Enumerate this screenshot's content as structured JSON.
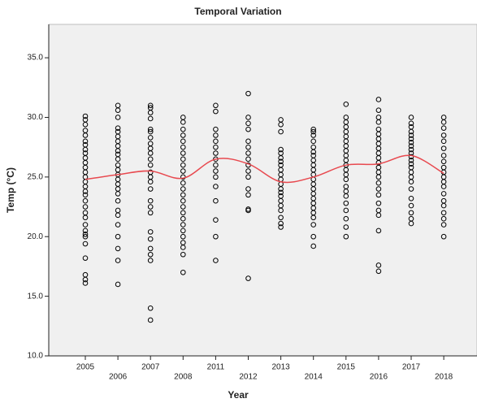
{
  "chart_data": {
    "type": "scatter",
    "title": "Temporal Variation",
    "x_label": "Year",
    "y_label": "Temp (°C)",
    "categories": [
      "2005",
      "2006",
      "2007",
      "2008",
      "2011",
      "2012",
      "2013",
      "2014",
      "2015",
      "2016",
      "2017",
      "2018"
    ],
    "values": [
      [
        30.1,
        29.8,
        29.4,
        28.9,
        28.5,
        28.0,
        27.7,
        27.3,
        27.0,
        26.6,
        26.2,
        25.8,
        25.4,
        25.0,
        24.6,
        24.2,
        23.8,
        23.5,
        23.0,
        22.5,
        22.0,
        21.6,
        21.0,
        20.5,
        20.2,
        20.0,
        19.4,
        18.2,
        16.8,
        16.4,
        16.1
      ],
      [
        31.0,
        30.6,
        30.0,
        29.1,
        28.8,
        28.4,
        28.0,
        27.6,
        27.2,
        26.9,
        26.5,
        26.0,
        25.6,
        25.2,
        24.8,
        24.4,
        24.0,
        23.6,
        23.0,
        22.2,
        21.8,
        21.0,
        20.0,
        19.0,
        18.0,
        16.0
      ],
      [
        31.0,
        30.8,
        30.4,
        29.9,
        29.0,
        28.8,
        28.3,
        27.8,
        27.4,
        27.0,
        26.5,
        26.0,
        25.4,
        25.0,
        24.6,
        24.0,
        23.0,
        22.5,
        22.0,
        20.4,
        19.8,
        19.0,
        18.5,
        18.0,
        14.0,
        13.0
      ],
      [
        30.0,
        29.6,
        29.0,
        28.5,
        28.0,
        27.5,
        27.0,
        26.5,
        26.0,
        25.5,
        25.0,
        24.5,
        24.0,
        23.5,
        23.0,
        22.5,
        22.0,
        21.5,
        21.0,
        20.5,
        20.0,
        19.5,
        19.1,
        18.5,
        17.0
      ],
      [
        31.0,
        30.5,
        29.0,
        28.5,
        28.0,
        27.5,
        27.0,
        26.5,
        26.0,
        25.5,
        25.0,
        24.2,
        23.0,
        21.4,
        20.0,
        18.0
      ],
      [
        32.0,
        30.0,
        29.5,
        29.0,
        28.0,
        27.5,
        27.0,
        26.5,
        26.0,
        25.5,
        25.0,
        24.0,
        23.5,
        22.3,
        22.2,
        16.5
      ],
      [
        29.8,
        29.4,
        28.8,
        27.3,
        27.0,
        26.6,
        26.3,
        26.0,
        25.6,
        25.2,
        24.8,
        24.4,
        24.0,
        23.7,
        23.4,
        23.0,
        22.6,
        22.2,
        21.6,
        21.1,
        20.8
      ],
      [
        29.0,
        28.8,
        28.5,
        28.0,
        27.5,
        27.1,
        26.8,
        26.4,
        26.0,
        25.6,
        25.2,
        24.8,
        24.4,
        24.0,
        23.6,
        23.2,
        22.8,
        22.4,
        22.0,
        21.6,
        21.0,
        20.0,
        19.2
      ],
      [
        31.1,
        30.0,
        29.6,
        29.2,
        28.8,
        28.4,
        28.0,
        27.6,
        27.2,
        26.8,
        26.4,
        26.0,
        25.6,
        25.2,
        24.8,
        24.2,
        23.8,
        23.4,
        22.8,
        22.2,
        21.5,
        20.8,
        20.0
      ],
      [
        31.5,
        30.6,
        30.0,
        29.6,
        29.0,
        28.6,
        28.2,
        27.8,
        27.4,
        27.0,
        26.6,
        26.2,
        25.8,
        25.4,
        25.0,
        24.5,
        24.0,
        23.5,
        22.8,
        22.2,
        21.8,
        20.5,
        17.6,
        17.1
      ],
      [
        30.0,
        29.5,
        29.2,
        28.8,
        28.5,
        28.2,
        27.9,
        27.6,
        27.3,
        27.0,
        26.7,
        26.4,
        26.1,
        25.8,
        25.4,
        25.0,
        24.6,
        24.0,
        23.2,
        22.6,
        22.0,
        21.5,
        21.1
      ],
      [
        30.0,
        29.6,
        29.1,
        28.5,
        28.0,
        27.4,
        26.8,
        26.3,
        25.8,
        25.4,
        25.0,
        24.6,
        24.2,
        23.6,
        23.0,
        22.6,
        22.0,
        21.5,
        21.0,
        20.0
      ]
    ],
    "color": "#000000",
    "fit_line": {
      "color": "#e8494f",
      "values": [
        24.8,
        25.2,
        25.5,
        24.9,
        26.5,
        26.1,
        24.6,
        25.0,
        26.0,
        26.1,
        26.8,
        25.3
      ]
    },
    "ylim": [
      10,
      37.8
    ],
    "yticks": [
      {
        "value": 10,
        "label": "10.0"
      },
      {
        "value": 15,
        "label": "15.0"
      },
      {
        "value": 20,
        "label": "20.0"
      },
      {
        "value": 25,
        "label": "25.0"
      },
      {
        "value": 30,
        "label": "30.0"
      },
      {
        "value": 35,
        "label": "35.0"
      }
    ]
  }
}
